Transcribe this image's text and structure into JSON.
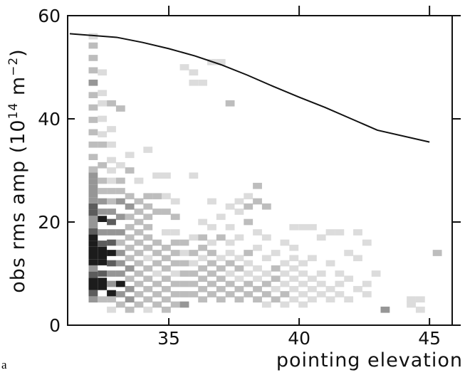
{
  "chart_data": {
    "type": "heatmap-line",
    "xlabel": "pointing elevation",
    "ylabel": [
      "obs rms amp (10",
      "14",
      " m",
      "−2",
      ")"
    ],
    "panel_label": "a",
    "xlim": [
      31.12,
      45.87
    ],
    "ylim": [
      0,
      60
    ],
    "xticks": [
      35,
      40,
      45
    ],
    "yticks": [
      0,
      20,
      40,
      60
    ],
    "cell_size": [
      0.35,
      1.2
    ],
    "level_colors": [
      "#dcdcdc",
      "#bdbdbd",
      "#969696",
      "#5c5c5c",
      "#1c1c1c"
    ],
    "cells": [
      [
        32.1,
        5,
        3
      ],
      [
        32.1,
        6.2,
        4
      ],
      [
        32.1,
        7.4,
        5
      ],
      [
        32.1,
        8.6,
        5
      ],
      [
        32.1,
        9.8,
        4
      ],
      [
        32.1,
        11,
        3
      ],
      [
        32.1,
        12.2,
        5
      ],
      [
        32.1,
        13.4,
        5
      ],
      [
        32.1,
        14.6,
        5
      ],
      [
        32.1,
        15.8,
        5
      ],
      [
        32.1,
        17,
        5
      ],
      [
        32.1,
        18.2,
        4
      ],
      [
        32.1,
        19.4,
        3
      ],
      [
        32.1,
        20.6,
        3
      ],
      [
        32.1,
        21.8,
        4
      ],
      [
        32.1,
        23,
        4
      ],
      [
        32.1,
        24.2,
        3
      ],
      [
        32.1,
        25.4,
        3
      ],
      [
        32.1,
        26.6,
        3
      ],
      [
        32.1,
        27.8,
        3
      ],
      [
        32.1,
        29,
        3
      ],
      [
        32.1,
        30.2,
        2
      ],
      [
        32.1,
        32.6,
        2
      ],
      [
        32.1,
        35,
        2
      ],
      [
        32.1,
        37.4,
        2
      ],
      [
        32.1,
        39.8,
        2
      ],
      [
        32.1,
        42.2,
        2
      ],
      [
        32.1,
        44.6,
        2
      ],
      [
        32.1,
        47,
        3
      ],
      [
        32.1,
        49.4,
        2
      ],
      [
        32.1,
        51.8,
        2
      ],
      [
        32.1,
        54.2,
        2
      ],
      [
        32.1,
        56,
        1
      ],
      [
        32.45,
        5,
        2
      ],
      [
        32.45,
        7.4,
        5
      ],
      [
        32.45,
        8.6,
        5
      ],
      [
        32.45,
        10,
        4
      ],
      [
        32.45,
        12.2,
        5
      ],
      [
        32.45,
        13.4,
        5
      ],
      [
        32.45,
        14.6,
        5
      ],
      [
        32.45,
        15.8,
        4
      ],
      [
        32.45,
        18,
        3
      ],
      [
        32.45,
        20.6,
        5
      ],
      [
        32.45,
        22,
        3
      ],
      [
        32.45,
        24,
        3
      ],
      [
        32.45,
        26,
        2
      ],
      [
        32.45,
        28,
        2
      ],
      [
        32.45,
        31,
        2
      ],
      [
        32.45,
        35,
        2
      ],
      [
        32.45,
        37,
        1
      ],
      [
        32.45,
        40,
        1
      ],
      [
        32.45,
        43,
        1
      ],
      [
        32.45,
        45,
        1
      ],
      [
        32.45,
        49,
        1
      ],
      [
        32.8,
        3,
        1
      ],
      [
        32.8,
        5,
        2
      ],
      [
        32.8,
        6.2,
        5
      ],
      [
        32.8,
        8,
        3
      ],
      [
        32.8,
        10,
        3
      ],
      [
        32.8,
        12,
        4
      ],
      [
        32.8,
        14,
        5
      ],
      [
        32.8,
        16,
        4
      ],
      [
        32.8,
        18,
        3
      ],
      [
        32.8,
        20,
        4
      ],
      [
        32.8,
        22,
        3
      ],
      [
        32.8,
        24,
        2
      ],
      [
        32.8,
        26,
        2
      ],
      [
        32.8,
        28,
        1
      ],
      [
        32.8,
        30,
        1
      ],
      [
        32.8,
        32,
        1
      ],
      [
        32.8,
        35,
        1
      ],
      [
        32.8,
        38,
        1
      ],
      [
        32.8,
        43,
        2
      ],
      [
        33.15,
        4,
        2
      ],
      [
        33.15,
        6,
        3
      ],
      [
        33.15,
        8,
        5
      ],
      [
        33.15,
        10,
        3
      ],
      [
        33.15,
        12,
        3
      ],
      [
        33.15,
        14,
        3
      ],
      [
        33.15,
        16,
        2
      ],
      [
        33.15,
        18,
        3
      ],
      [
        33.15,
        21,
        3
      ],
      [
        33.15,
        24,
        3
      ],
      [
        33.15,
        26,
        2
      ],
      [
        33.15,
        28,
        2
      ],
      [
        33.15,
        31,
        1
      ],
      [
        33.15,
        42,
        2
      ],
      [
        33.5,
        3,
        2
      ],
      [
        33.5,
        5,
        3
      ],
      [
        33.5,
        7,
        3
      ],
      [
        33.5,
        9,
        2
      ],
      [
        33.5,
        11,
        3
      ],
      [
        33.5,
        13,
        2
      ],
      [
        33.5,
        15,
        2
      ],
      [
        33.5,
        17,
        2
      ],
      [
        33.5,
        19,
        2
      ],
      [
        33.5,
        21,
        2
      ],
      [
        33.5,
        23,
        3
      ],
      [
        33.5,
        25,
        2
      ],
      [
        33.5,
        30,
        2
      ],
      [
        33.5,
        33,
        1
      ],
      [
        33.85,
        4,
        2
      ],
      [
        33.85,
        6,
        2
      ],
      [
        33.85,
        8,
        2
      ],
      [
        33.85,
        10,
        2
      ],
      [
        33.85,
        12,
        2
      ],
      [
        33.85,
        14,
        2
      ],
      [
        33.85,
        16,
        2
      ],
      [
        33.85,
        18,
        2
      ],
      [
        33.85,
        20,
        2
      ],
      [
        33.85,
        22,
        2
      ],
      [
        33.85,
        24,
        2
      ],
      [
        33.85,
        28,
        1
      ],
      [
        34.2,
        3,
        1
      ],
      [
        34.2,
        5,
        2
      ],
      [
        34.2,
        7,
        2
      ],
      [
        34.2,
        9,
        2
      ],
      [
        34.2,
        11,
        2
      ],
      [
        34.2,
        13,
        1
      ],
      [
        34.2,
        15,
        2
      ],
      [
        34.2,
        17,
        2
      ],
      [
        34.2,
        19,
        2
      ],
      [
        34.2,
        21,
        2
      ],
      [
        34.2,
        23,
        2
      ],
      [
        34.2,
        25,
        2
      ],
      [
        34.2,
        34,
        1
      ],
      [
        34.55,
        4,
        2
      ],
      [
        34.55,
        6,
        2
      ],
      [
        34.55,
        8,
        2
      ],
      [
        34.55,
        10,
        1
      ],
      [
        34.55,
        12,
        2
      ],
      [
        34.55,
        14,
        2
      ],
      [
        34.55,
        16,
        2
      ],
      [
        34.55,
        22,
        2
      ],
      [
        34.55,
        25,
        2
      ],
      [
        34.55,
        29,
        1
      ],
      [
        34.9,
        3,
        2
      ],
      [
        34.9,
        5,
        2
      ],
      [
        34.9,
        7,
        2
      ],
      [
        34.9,
        9,
        2
      ],
      [
        34.9,
        11,
        2
      ],
      [
        34.9,
        13,
        2
      ],
      [
        34.9,
        15,
        2
      ],
      [
        34.9,
        18,
        1
      ],
      [
        34.9,
        22,
        2
      ],
      [
        34.9,
        25,
        1
      ],
      [
        34.9,
        29,
        1
      ],
      [
        35.25,
        4,
        2
      ],
      [
        35.25,
        6,
        2
      ],
      [
        35.25,
        8,
        2
      ],
      [
        35.25,
        10,
        1
      ],
      [
        35.25,
        12,
        2
      ],
      [
        35.25,
        14,
        2
      ],
      [
        35.25,
        16,
        2
      ],
      [
        35.25,
        18,
        1
      ],
      [
        35.25,
        21,
        2
      ],
      [
        35.25,
        24,
        1
      ],
      [
        35.6,
        4,
        3
      ],
      [
        35.6,
        6,
        2
      ],
      [
        35.6,
        8,
        2
      ],
      [
        35.6,
        10,
        2
      ],
      [
        35.6,
        12,
        2
      ],
      [
        35.6,
        14,
        1
      ],
      [
        35.6,
        16,
        2
      ],
      [
        35.6,
        50,
        1
      ],
      [
        35.95,
        6,
        2
      ],
      [
        35.95,
        8,
        2
      ],
      [
        35.95,
        10,
        2
      ],
      [
        35.95,
        12,
        1
      ],
      [
        35.95,
        14,
        2
      ],
      [
        35.95,
        17,
        1
      ],
      [
        35.95,
        29,
        1
      ],
      [
        35.95,
        47,
        1
      ],
      [
        35.95,
        49,
        1
      ],
      [
        36.3,
        5,
        2
      ],
      [
        36.3,
        7,
        2
      ],
      [
        36.3,
        9,
        2
      ],
      [
        36.3,
        11,
        2
      ],
      [
        36.3,
        13,
        1
      ],
      [
        36.3,
        15,
        2
      ],
      [
        36.3,
        17,
        2
      ],
      [
        36.3,
        20,
        1
      ],
      [
        36.3,
        47,
        1
      ],
      [
        36.65,
        6,
        2
      ],
      [
        36.65,
        8,
        2
      ],
      [
        36.65,
        10,
        2
      ],
      [
        36.65,
        12,
        2
      ],
      [
        36.65,
        14,
        2
      ],
      [
        36.65,
        16,
        1
      ],
      [
        36.65,
        19,
        1
      ],
      [
        36.65,
        24,
        1
      ],
      [
        36.65,
        51,
        1
      ],
      [
        37,
        5,
        2
      ],
      [
        37,
        7,
        2
      ],
      [
        37,
        9,
        2
      ],
      [
        37,
        11,
        2
      ],
      [
        37,
        13,
        1
      ],
      [
        37,
        17,
        2
      ],
      [
        37,
        21,
        1
      ],
      [
        37,
        51,
        1
      ],
      [
        37.35,
        6,
        2
      ],
      [
        37.35,
        8,
        2
      ],
      [
        37.35,
        10,
        1
      ],
      [
        37.35,
        12,
        2
      ],
      [
        37.35,
        14,
        1
      ],
      [
        37.35,
        16,
        1
      ],
      [
        37.35,
        19,
        1
      ],
      [
        37.35,
        23,
        1
      ],
      [
        37.35,
        43,
        2
      ],
      [
        37.7,
        5,
        2
      ],
      [
        37.7,
        7,
        2
      ],
      [
        37.7,
        9,
        1
      ],
      [
        37.7,
        11,
        2
      ],
      [
        37.7,
        13,
        1
      ],
      [
        37.7,
        17,
        1
      ],
      [
        37.7,
        22,
        1
      ],
      [
        37.7,
        24,
        1
      ],
      [
        38.05,
        6,
        2
      ],
      [
        38.05,
        8,
        2
      ],
      [
        38.05,
        10,
        1
      ],
      [
        38.05,
        12,
        1
      ],
      [
        38.05,
        14,
        2
      ],
      [
        38.05,
        20,
        2
      ],
      [
        38.05,
        23,
        2
      ],
      [
        38.05,
        25,
        1
      ],
      [
        38.4,
        5,
        2
      ],
      [
        38.4,
        7,
        2
      ],
      [
        38.4,
        9,
        1
      ],
      [
        38.4,
        11,
        1
      ],
      [
        38.4,
        15,
        1
      ],
      [
        38.4,
        18,
        1
      ],
      [
        38.4,
        24,
        2
      ],
      [
        38.4,
        27,
        2
      ],
      [
        38.75,
        4,
        1
      ],
      [
        38.75,
        6,
        2
      ],
      [
        38.75,
        8,
        2
      ],
      [
        38.75,
        10,
        1
      ],
      [
        38.75,
        13,
        1
      ],
      [
        38.75,
        17,
        1
      ],
      [
        38.75,
        23,
        2
      ],
      [
        39.1,
        5,
        2
      ],
      [
        39.1,
        7,
        1
      ],
      [
        39.1,
        9,
        2
      ],
      [
        39.1,
        11,
        2
      ],
      [
        39.1,
        14,
        1
      ],
      [
        39.45,
        4,
        1
      ],
      [
        39.45,
        6,
        2
      ],
      [
        39.45,
        8,
        1
      ],
      [
        39.45,
        10,
        1
      ],
      [
        39.45,
        12,
        1
      ],
      [
        39.45,
        16,
        1
      ],
      [
        39.8,
        5,
        1
      ],
      [
        39.8,
        7,
        1
      ],
      [
        39.8,
        9,
        1
      ],
      [
        39.8,
        11,
        1
      ],
      [
        39.8,
        13,
        1
      ],
      [
        39.8,
        15,
        1
      ],
      [
        39.8,
        19,
        1
      ],
      [
        40.15,
        4,
        1
      ],
      [
        40.15,
        6,
        1
      ],
      [
        40.15,
        8,
        1
      ],
      [
        40.15,
        10,
        1
      ],
      [
        40.15,
        12,
        1
      ],
      [
        40.15,
        19,
        1
      ],
      [
        40.5,
        5,
        1
      ],
      [
        40.5,
        7,
        1
      ],
      [
        40.5,
        9,
        1
      ],
      [
        40.5,
        13,
        1
      ],
      [
        40.5,
        19,
        1
      ],
      [
        40.85,
        6,
        1
      ],
      [
        40.85,
        8,
        1
      ],
      [
        40.85,
        10,
        1
      ],
      [
        40.85,
        17,
        1
      ],
      [
        41.2,
        5,
        1
      ],
      [
        41.2,
        7,
        1
      ],
      [
        41.2,
        12,
        1
      ],
      [
        41.2,
        18,
        1
      ],
      [
        41.55,
        6,
        1
      ],
      [
        41.55,
        8,
        1
      ],
      [
        41.55,
        10,
        1
      ],
      [
        41.55,
        18,
        1
      ],
      [
        41.9,
        5,
        1
      ],
      [
        41.9,
        9,
        1
      ],
      [
        41.9,
        14,
        1
      ],
      [
        42.25,
        7,
        1
      ],
      [
        42.25,
        13,
        1
      ],
      [
        42.25,
        18,
        1
      ],
      [
        42.6,
        6,
        1
      ],
      [
        42.6,
        8,
        1
      ],
      [
        42.6,
        16,
        1
      ],
      [
        42.95,
        10,
        1
      ],
      [
        43.3,
        3,
        3
      ],
      [
        44.3,
        4,
        1
      ],
      [
        44.3,
        5,
        1
      ],
      [
        44.65,
        3,
        1
      ],
      [
        44.65,
        5,
        1
      ],
      [
        45.3,
        14,
        2
      ]
    ],
    "line": {
      "color": "#111111",
      "x": [
        31.2,
        33,
        34,
        35,
        36,
        37,
        38,
        39,
        40,
        41,
        42,
        43,
        45
      ],
      "values": [
        56.5,
        55.8,
        54.8,
        53.6,
        52.2,
        50.5,
        48.5,
        46.3,
        44.2,
        42.2,
        40,
        37.8,
        35.5
      ]
    }
  }
}
